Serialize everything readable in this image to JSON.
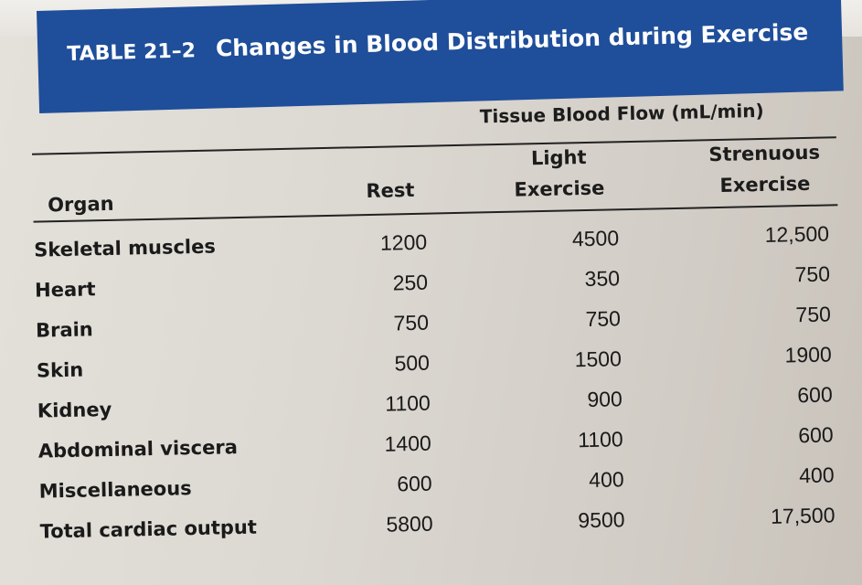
{
  "table": {
    "label": "TABLE 21–2",
    "title": "Changes in Blood Distribution during Exercise",
    "group_header": "Tissue Blood Flow (mL/min)",
    "columns": {
      "organ": "Organ",
      "rest": "Rest",
      "light_line1": "Light",
      "light_line2": "Exercise",
      "strenuous_line1": "Strenuous",
      "strenuous_line2": "Exercise"
    },
    "rows": [
      {
        "organ": "Skeletal muscles",
        "rest": "1200",
        "light": "4500",
        "strenuous": "12,500"
      },
      {
        "organ": "Heart",
        "rest": "250",
        "light": "350",
        "strenuous": "750"
      },
      {
        "organ": "Brain",
        "rest": "750",
        "light": "750",
        "strenuous": "750"
      },
      {
        "organ": "Skin",
        "rest": "500",
        "light": "1500",
        "strenuous": "1900"
      },
      {
        "organ": "Kidney",
        "rest": "1100",
        "light": "900",
        "strenuous": "600"
      },
      {
        "organ": "Abdominal viscera",
        "rest": "1400",
        "light": "1100",
        "strenuous": "600"
      },
      {
        "organ": "Miscellaneous",
        "rest": "600",
        "light": "400",
        "strenuous": "400"
      },
      {
        "organ": "Total cardiac output",
        "rest": "5800",
        "light": "9500",
        "strenuous": "17,500"
      }
    ]
  }
}
